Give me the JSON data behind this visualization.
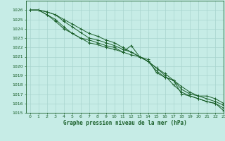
{
  "title": "Graphe pression niveau de la mer (hPa)",
  "bg_color": "#c6ece6",
  "grid_color": "#a8d4ce",
  "line_color": "#1a5f2a",
  "xlim": [
    -0.5,
    23
  ],
  "ylim": [
    1015,
    1027
  ],
  "xticks": [
    0,
    1,
    2,
    3,
    4,
    5,
    6,
    7,
    8,
    9,
    10,
    11,
    12,
    13,
    14,
    15,
    16,
    17,
    18,
    19,
    20,
    21,
    22,
    23
  ],
  "yticks": [
    1015,
    1016,
    1017,
    1018,
    1019,
    1020,
    1021,
    1022,
    1023,
    1024,
    1025,
    1026
  ],
  "series": [
    [
      1026.0,
      1026.0,
      1025.5,
      1025.0,
      1024.2,
      1023.5,
      1023.0,
      1022.5,
      1022.3,
      1022.0,
      1021.8,
      1021.5,
      1022.2,
      1021.0,
      1020.7,
      1019.3,
      1018.8,
      1018.5,
      1017.0,
      1016.8,
      1016.5,
      1016.2,
      1016.0,
      1015.2
    ],
    [
      1026.0,
      1026.0,
      1025.8,
      1025.5,
      1024.8,
      1024.2,
      1023.6,
      1023.0,
      1022.8,
      1022.5,
      1022.2,
      1021.8,
      1021.5,
      1021.0,
      1020.5,
      1019.8,
      1019.2,
      1018.5,
      1017.8,
      1017.2,
      1016.8,
      1016.5,
      1016.2,
      1015.8
    ],
    [
      1026.0,
      1026.0,
      1025.8,
      1025.5,
      1025.0,
      1024.5,
      1024.0,
      1023.5,
      1023.2,
      1022.8,
      1022.5,
      1022.0,
      1021.5,
      1021.0,
      1020.5,
      1019.8,
      1019.0,
      1018.0,
      1017.2,
      1016.8,
      1016.5,
      1016.2,
      1016.0,
      1015.5
    ],
    [
      1026.0,
      1026.0,
      1025.5,
      1024.8,
      1024.0,
      1023.5,
      1023.0,
      1022.8,
      1022.5,
      1022.2,
      1022.0,
      1021.5,
      1021.2,
      1021.0,
      1020.5,
      1019.5,
      1018.8,
      1018.5,
      1017.5,
      1017.0,
      1016.8,
      1016.8,
      1016.5,
      1016.0
    ]
  ]
}
